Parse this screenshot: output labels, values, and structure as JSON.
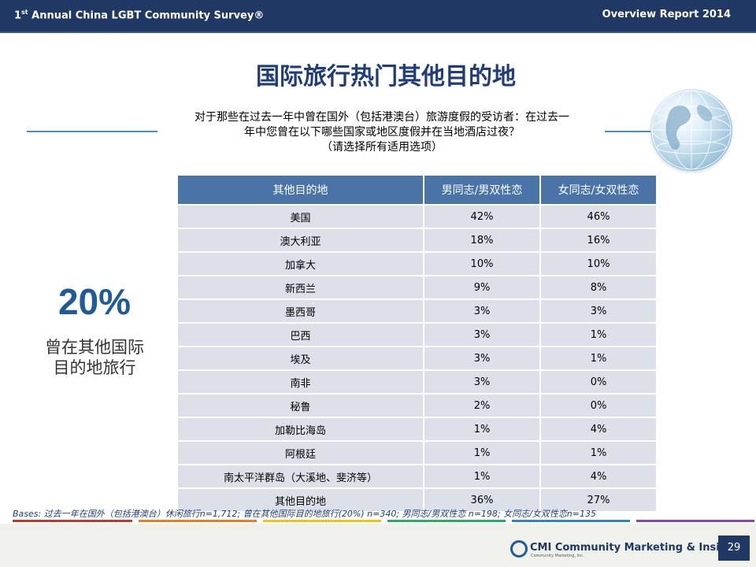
{
  "header": {
    "left_title_prefix": "1",
    "left_title_sup": "st",
    "left_title_rest": " Annual China LGBT Community Survey®",
    "right_title": "Overview Report 2014"
  },
  "title": "国际旅行热门其他目的地",
  "question": {
    "line1": "对于那些在过去一年中曾在国外（包括港澳台）旅游度假的受访者：在过去一",
    "line2": "年中您曾在以下哪些国家或地区度假并在当地酒店过夜？",
    "line3": "（请选择所有适用选项）"
  },
  "callout": {
    "percent": "20%",
    "line1": "曾在其他国际",
    "line2": "目的地旅行"
  },
  "table": {
    "headers": [
      "其他目的地",
      "男同志/男双性恋",
      "女同志/女双性恋"
    ],
    "rows": [
      [
        "美国",
        "42%",
        "46%"
      ],
      [
        "澳大利亚",
        "18%",
        "16%"
      ],
      [
        "加拿大",
        "10%",
        "10%"
      ],
      [
        "新西兰",
        "9%",
        "8%"
      ],
      [
        "墨西哥",
        "3%",
        "3%"
      ],
      [
        "巴西",
        "3%",
        "1%"
      ],
      [
        "埃及",
        "3%",
        "1%"
      ],
      [
        "南非",
        "3%",
        "0%"
      ],
      [
        "秘鲁",
        "2%",
        "0%"
      ],
      [
        "加勒比海岛",
        "1%",
        "4%"
      ],
      [
        "阿根廷",
        "1%",
        "1%"
      ],
      [
        "南太平洋群岛（大溪地、斐济等）",
        "1%",
        "4%"
      ],
      [
        "其他目的地",
        "36%",
        "27%"
      ]
    ]
  },
  "bases": "Bases: 过去一年在国外（包括港澳台）休闲旅行n=1,712; 曾在其他国际目的地旅行(20%) n=340; 男同志/男双性恋 n=198; 女同志/女双性恋n=135",
  "footer": {
    "company": "CMI Community Marketing & Insights",
    "company_sub": "Community Marketing, Inc.",
    "page_number": "29"
  },
  "colors": {
    "header_bg": "#1f3864",
    "title": "#1f3d7a",
    "table_header": "#4a74a8",
    "table_cell": "#dce1e9",
    "accent_percent": "#1f5a9a",
    "stripe_colors": [
      "#c0392b",
      "#e67e22",
      "#f1c40f",
      "#27ae60",
      "#2e86c1",
      "#8e44ad"
    ]
  },
  "icons": {
    "globe": "globe-icon",
    "logo": "cmi-logo-icon"
  }
}
